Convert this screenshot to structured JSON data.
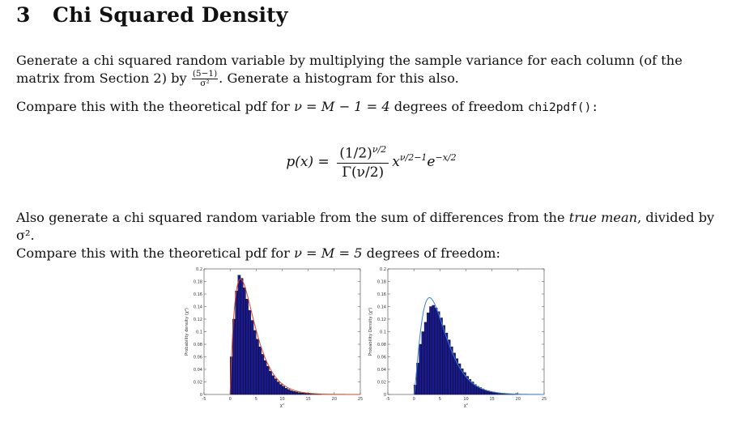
{
  "section": {
    "number": "3",
    "title": "Chi Squared Density"
  },
  "paragraph1": {
    "text_a": "Generate a chi squared random variable by multiplying the sample variance for each column (of the matrix from Section 2) by ",
    "frac_num": "(5−1)",
    "frac_den": "σ²",
    "text_b": ". Generate a histogram for this also."
  },
  "paragraph2": {
    "text_a": "Compare this with the theoretical pdf for ",
    "math": "ν = M − 1 = 4",
    "text_b": " degrees of freedom ",
    "code": "chi2pdf():"
  },
  "equation": {
    "lhs": "p(x) =",
    "num": "(1/2)",
    "num_sup": "ν/2",
    "den": "Γ(ν/2)",
    "x": "x",
    "x_sup": "ν/2−1",
    "e": "e",
    "e_sup": "−x/2"
  },
  "paragraph3": {
    "text_a": "Also generate a chi squared random variable from the sum of differences from the ",
    "italic": "true mean",
    "text_b": ", divided by σ².",
    "line2_a": "Compare this with the theoretical pdf for ",
    "math": "ν = M = 5",
    "line2_b": " degrees of freedom:"
  },
  "chart_data": [
    {
      "type": "bar",
      "title": "",
      "xlabel": "χ²",
      "ylabel": "Probability density (χ²)",
      "xlim": [
        -5,
        25
      ],
      "ylim": [
        0,
        0.2
      ],
      "xticks": [
        "-5",
        "0",
        "5",
        "10",
        "15",
        "20",
        "25"
      ],
      "yticks": [
        "0",
        "0.02",
        "0.04",
        "0.06",
        "0.08",
        "0.1",
        "0.12",
        "0.14",
        "0.16",
        "0.18",
        "0.2"
      ],
      "bar_color": "#1a1a8c",
      "curve_color": "#d9442a",
      "histogram": {
        "bin_centers": [
          0.25,
          0.75,
          1.25,
          1.75,
          2.25,
          2.75,
          3.25,
          3.75,
          4.25,
          4.75,
          5.25,
          5.75,
          6.25,
          6.75,
          7.25,
          7.75,
          8.25,
          8.75,
          9.25,
          9.75,
          10.25,
          10.75,
          11.25,
          11.75,
          12.25,
          12.75,
          13.25,
          13.75,
          14.25,
          14.75,
          15.25,
          15.75,
          16.25,
          16.75,
          17.25
        ],
        "values": [
          0.06,
          0.12,
          0.165,
          0.19,
          0.185,
          0.17,
          0.152,
          0.134,
          0.118,
          0.102,
          0.088,
          0.076,
          0.064,
          0.054,
          0.045,
          0.037,
          0.03,
          0.025,
          0.02,
          0.016,
          0.013,
          0.01,
          0.008,
          0.006,
          0.005,
          0.004,
          0.003,
          0.0025,
          0.002,
          0.0015,
          0.001,
          0.001,
          0.0008,
          0.0005,
          0.0004
        ]
      },
      "curve": {
        "name": "chi2pdf",
        "dof": 4,
        "x_start": 0,
        "x_end": 25
      }
    },
    {
      "type": "bar",
      "title": "",
      "xlabel": "χ²",
      "ylabel": "Probability Density (χ²)",
      "xlim": [
        -5,
        25
      ],
      "ylim": [
        0,
        0.2
      ],
      "xticks": [
        "-5",
        "0",
        "5",
        "10",
        "15",
        "20",
        "25"
      ],
      "yticks": [
        "0",
        "0.02",
        "0.04",
        "0.06",
        "0.08",
        "0.1",
        "0.12",
        "0.14",
        "0.16",
        "0.18",
        "0.2"
      ],
      "bar_color": "#1a1a8c",
      "curve_color": "#3b7fd9",
      "histogram": {
        "bin_centers": [
          0.25,
          0.75,
          1.25,
          1.75,
          2.25,
          2.75,
          3.25,
          3.75,
          4.25,
          4.75,
          5.25,
          5.75,
          6.25,
          6.75,
          7.25,
          7.75,
          8.25,
          8.75,
          9.25,
          9.75,
          10.25,
          10.75,
          11.25,
          11.75,
          12.25,
          12.75,
          13.25,
          13.75,
          14.25,
          14.75,
          15.25,
          15.75,
          16.25,
          16.75,
          17.25,
          17.75,
          18.25,
          18.75,
          19.25,
          19.75
        ],
        "values": [
          0.015,
          0.05,
          0.08,
          0.1,
          0.115,
          0.13,
          0.14,
          0.142,
          0.138,
          0.132,
          0.122,
          0.11,
          0.098,
          0.087,
          0.076,
          0.066,
          0.057,
          0.049,
          0.041,
          0.035,
          0.029,
          0.024,
          0.02,
          0.016,
          0.013,
          0.011,
          0.009,
          0.007,
          0.006,
          0.005,
          0.004,
          0.003,
          0.0025,
          0.002,
          0.0015,
          0.001,
          0.001,
          0.0008,
          0.0006,
          0.0015
        ]
      },
      "curve": {
        "name": "chi2pdf",
        "dof": 5,
        "x_start": 0,
        "x_end": 25
      }
    }
  ]
}
